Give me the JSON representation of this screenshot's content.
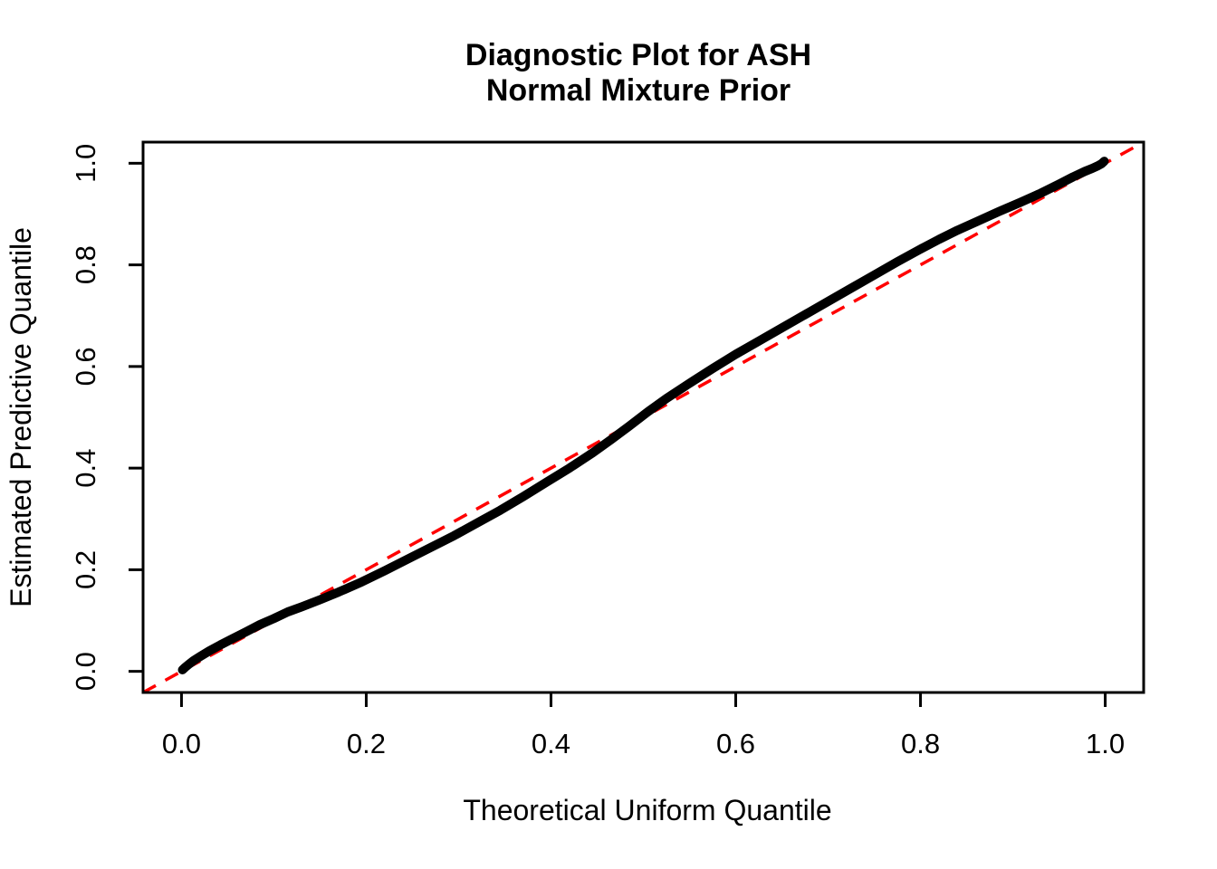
{
  "figure": {
    "title_line1": "Diagnostic Plot for ASH",
    "title_line2": "Normal Mixture Prior",
    "xlabel": "Theoretical Uniform Quantile",
    "ylabel": "Estimated Predictive Quantile"
  },
  "chart_data": {
    "type": "line",
    "title": "Diagnostic Plot for ASH\nNormal Mixture Prior",
    "xlabel": "Theoretical Uniform Quantile",
    "ylabel": "Estimated Predictive Quantile",
    "xlim": [
      0,
      1
    ],
    "ylim": [
      0,
      1
    ],
    "axis_pad_frac": 0.0416,
    "grid": false,
    "legend": "none",
    "x_ticks": [
      0.0,
      0.2,
      0.4,
      0.6,
      0.8,
      1.0
    ],
    "y_ticks": [
      0.0,
      0.2,
      0.4,
      0.6,
      0.8,
      1.0
    ],
    "x_tick_labels": [
      "0.0",
      "0.2",
      "0.4",
      "0.6",
      "0.8",
      "1.0"
    ],
    "y_tick_labels": [
      "0.0",
      "0.2",
      "0.4",
      "0.6",
      "0.8",
      "1.0"
    ],
    "colors": {
      "curve": "#000000",
      "reference": "#FF0000",
      "axis": "#000000",
      "background": "#FFFFFF"
    },
    "series": [
      {
        "name": "estimated-predictive-quantile-curve",
        "style": "solid-thick",
        "color": "#000000",
        "points": [
          [
            0.001,
            0.003
          ],
          [
            0.004,
            0.008
          ],
          [
            0.008,
            0.014
          ],
          [
            0.013,
            0.021
          ],
          [
            0.02,
            0.029
          ],
          [
            0.03,
            0.04
          ],
          [
            0.042,
            0.052
          ],
          [
            0.055,
            0.064
          ],
          [
            0.07,
            0.078
          ],
          [
            0.085,
            0.092
          ],
          [
            0.1,
            0.104
          ],
          [
            0.115,
            0.117
          ],
          [
            0.13,
            0.127
          ],
          [
            0.15,
            0.141
          ],
          [
            0.17,
            0.156
          ],
          [
            0.195,
            0.176
          ],
          [
            0.22,
            0.198
          ],
          [
            0.245,
            0.221
          ],
          [
            0.27,
            0.244
          ],
          [
            0.295,
            0.267
          ],
          [
            0.32,
            0.292
          ],
          [
            0.345,
            0.317
          ],
          [
            0.37,
            0.344
          ],
          [
            0.395,
            0.372
          ],
          [
            0.42,
            0.4
          ],
          [
            0.445,
            0.43
          ],
          [
            0.465,
            0.456
          ],
          [
            0.485,
            0.483
          ],
          [
            0.505,
            0.511
          ],
          [
            0.525,
            0.537
          ],
          [
            0.55,
            0.567
          ],
          [
            0.575,
            0.596
          ],
          [
            0.6,
            0.624
          ],
          [
            0.625,
            0.65
          ],
          [
            0.65,
            0.676
          ],
          [
            0.675,
            0.702
          ],
          [
            0.7,
            0.728
          ],
          [
            0.725,
            0.754
          ],
          [
            0.75,
            0.78
          ],
          [
            0.775,
            0.806
          ],
          [
            0.8,
            0.831
          ],
          [
            0.82,
            0.85
          ],
          [
            0.84,
            0.868
          ],
          [
            0.862,
            0.886
          ],
          [
            0.885,
            0.905
          ],
          [
            0.908,
            0.923
          ],
          [
            0.93,
            0.941
          ],
          [
            0.95,
            0.959
          ],
          [
            0.965,
            0.973
          ],
          [
            0.978,
            0.984
          ],
          [
            0.986,
            0.99
          ],
          [
            0.992,
            0.995
          ],
          [
            0.996,
            0.999
          ],
          [
            0.999,
            1.004
          ]
        ]
      },
      {
        "name": "reference-diagonal",
        "style": "dashed",
        "color": "#FF0000",
        "points": [
          [
            0,
            0
          ],
          [
            1,
            1
          ]
        ]
      }
    ]
  }
}
